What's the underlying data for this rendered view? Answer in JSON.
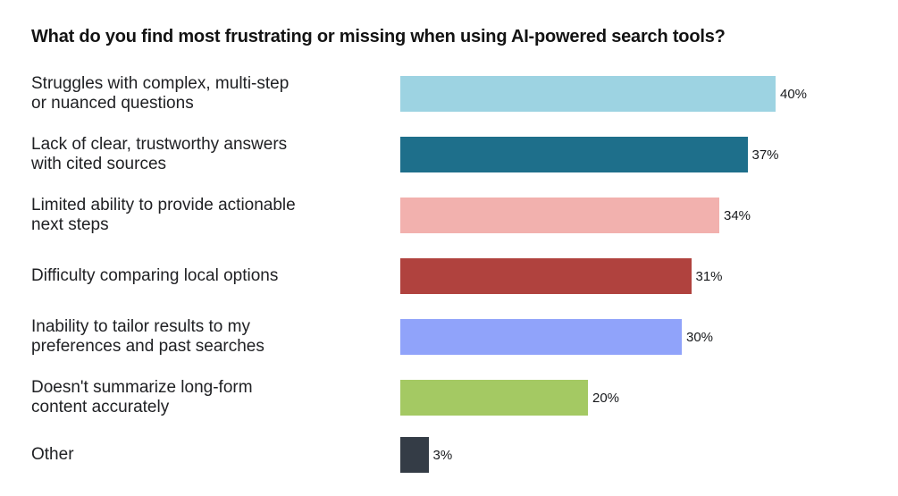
{
  "chart_data": {
    "type": "bar",
    "orientation": "horizontal",
    "title": "What do you find most frustrating or missing when using AI-powered search tools?",
    "xlabel": "",
    "ylabel": "",
    "xlim": [
      0,
      40
    ],
    "grid": false,
    "legend": false,
    "value_format": "percent",
    "categories": [
      "Struggles with complex, multi-step or nuanced questions",
      "Lack of clear, trustworthy answers with cited sources",
      "Limited ability to provide actionable next steps",
      "Difficulty comparing local options",
      "Inability to tailor results to my preferences and past searches",
      "Doesn't summarize long-form content accurately",
      "Other"
    ],
    "values": [
      40,
      37,
      34,
      31,
      30,
      20,
      3
    ],
    "bars": [
      {
        "label": "Struggles with complex, multi-step\nor nuanced questions",
        "value": 40,
        "pct_label": "40%",
        "color": "#9dd3e2"
      },
      {
        "label": "Lack of clear, trustworthy answers\nwith cited sources",
        "value": 37,
        "pct_label": "37%",
        "color": "#1e6f8b"
      },
      {
        "label": "Limited ability to provide actionable\nnext steps",
        "value": 34,
        "pct_label": "34%",
        "color": "#f2b1ae"
      },
      {
        "label": "Difficulty comparing local options",
        "value": 31,
        "pct_label": "31%",
        "color": "#b0423e"
      },
      {
        "label": "Inability to tailor results to my\npreferences and past searches",
        "value": 30,
        "pct_label": "30%",
        "color": "#90a3fa"
      },
      {
        "label": "Doesn't summarize long-form\ncontent accurately",
        "value": 20,
        "pct_label": "20%",
        "color": "#a4c963"
      },
      {
        "label": "Other",
        "value": 3,
        "pct_label": "3%",
        "color": "#343c46"
      }
    ]
  }
}
